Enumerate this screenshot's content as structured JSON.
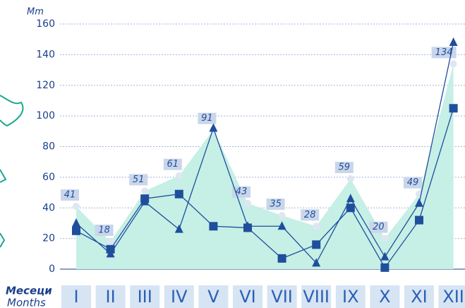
{
  "chart_data": {
    "type": "line",
    "y_label": "Mm",
    "x_label_lines": [
      "Месеци",
      "Months"
    ],
    "categories": [
      "I",
      "II",
      "III",
      "IV",
      "V",
      "VI",
      "VII",
      "VIII",
      "IX",
      "X",
      "XI",
      "XII"
    ],
    "ylim": [
      0,
      160
    ],
    "yticks": [
      0,
      20,
      40,
      60,
      80,
      100,
      120,
      140,
      160
    ],
    "grid": true,
    "series": [
      {
        "style": "area",
        "color": "#c6efe6",
        "marker_color": "#dfe6f2",
        "values": [
          41,
          18,
          51,
          61,
          91,
          43,
          35,
          28,
          59,
          20,
          49,
          134
        ]
      },
      {
        "style": "line",
        "marker": "triangle",
        "color": "#1f4e9c",
        "values": [
          30,
          10,
          44,
          26,
          92,
          28,
          28,
          4,
          46,
          8,
          43,
          148
        ]
      },
      {
        "style": "line",
        "marker": "square",
        "color": "#1f4e9c",
        "values": [
          25,
          13,
          46,
          49,
          28,
          27,
          7,
          16,
          40,
          1,
          32,
          105
        ]
      }
    ]
  }
}
